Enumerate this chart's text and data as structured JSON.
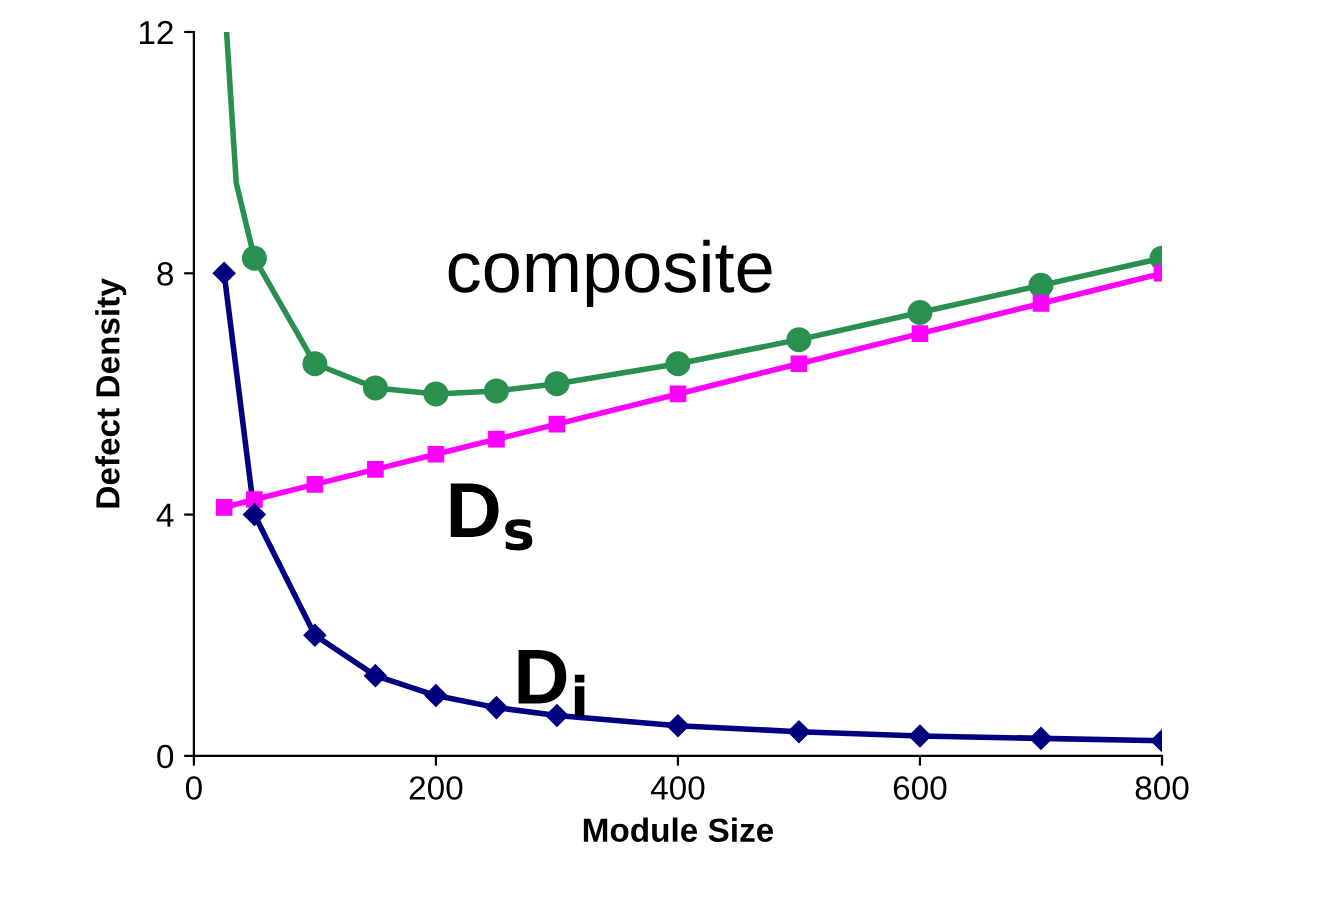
{
  "chart_data": {
    "type": "line",
    "xlabel": "Module Size",
    "ylabel": "Defect Density",
    "xlim": [
      0,
      800
    ],
    "ylim": [
      0,
      12
    ],
    "xticks": [
      0,
      200,
      400,
      600,
      800
    ],
    "yticks": [
      0,
      4,
      8,
      12
    ],
    "grid": false,
    "legend": false,
    "series": [
      {
        "name": "composite",
        "color": "#2a9050",
        "marker": "circle",
        "x": [
          27,
          35,
          50,
          100,
          150,
          200,
          250,
          300,
          400,
          500,
          600,
          700,
          800
        ],
        "values": [
          12,
          9.5,
          8.25,
          6.5,
          6.1,
          6,
          6.05,
          6.17,
          6.5,
          6.9,
          7.35,
          7.8,
          8.25
        ]
      },
      {
        "name": "D$_{s}$",
        "color": "#ff00ff",
        "marker": "square",
        "x": [
          25,
          50,
          100,
          150,
          200,
          250,
          300,
          400,
          500,
          600,
          700,
          800
        ],
        "values": [
          4.12,
          4.25,
          4.5,
          4.75,
          5,
          5.25,
          5.5,
          6,
          6.5,
          7,
          7.5,
          8
        ]
      },
      {
        "name": "D$_{i}$",
        "color": "#000080",
        "marker": "diamond",
        "x": [
          25,
          50,
          100,
          150,
          200,
          250,
          300,
          400,
          500,
          600,
          700,
          800
        ],
        "values": [
          8,
          4,
          2,
          1.33,
          1,
          0.8,
          0.67,
          0.5,
          0.4,
          0.33,
          0.29,
          0.25
        ]
      }
    ]
  }
}
